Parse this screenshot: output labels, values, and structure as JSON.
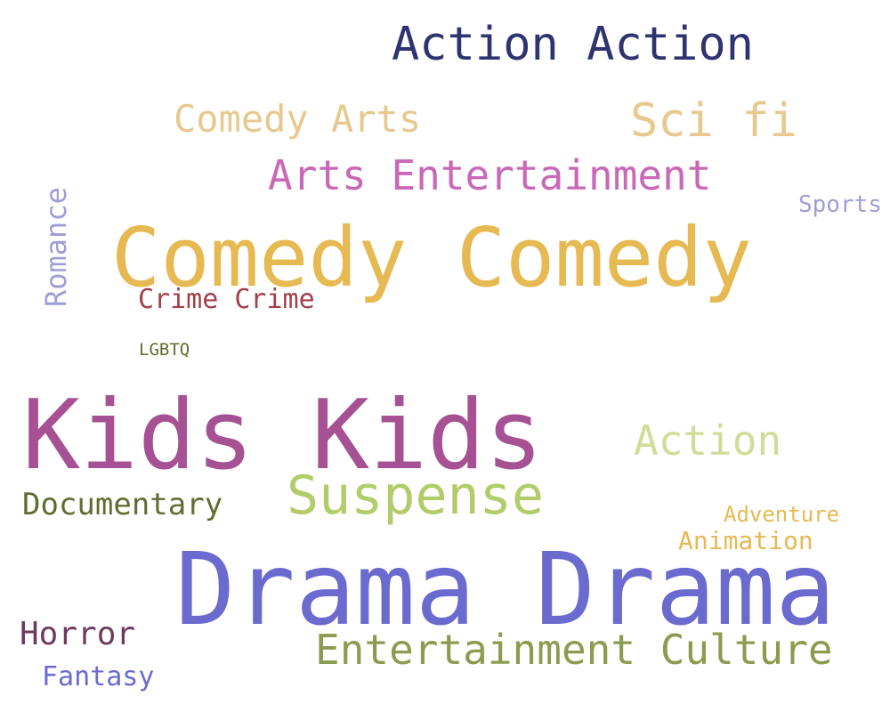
{
  "words": {
    "action_action": {
      "text": "Action Action",
      "color": "#2f3470"
    },
    "comedy_arts": {
      "text": "Comedy Arts",
      "color": "#e7c98f"
    },
    "sci_fi": {
      "text": "Sci fi",
      "color": "#e7c98f"
    },
    "arts_entertainment": {
      "text": "Arts Entertainment",
      "color": "#c968b7"
    },
    "sports": {
      "text": "Sports",
      "color": "#9e9ed8"
    },
    "comedy_comedy": {
      "text": "Comedy Comedy",
      "color": "#e6b953"
    },
    "romance": {
      "text": "Romance",
      "color": "#9e9ed8"
    },
    "crime_crime": {
      "text": "Crime Crime",
      "color": "#a0404a"
    },
    "lgbtq": {
      "text": "LGBTQ",
      "color": "#5f6e2c"
    },
    "kids_kids": {
      "text": "Kids Kids",
      "color": "#a65193"
    },
    "action": {
      "text": "Action",
      "color": "#d2dc98"
    },
    "suspense": {
      "text": "Suspense",
      "color": "#b2cc6a"
    },
    "documentary": {
      "text": "Documentary",
      "color": "#5f6e30"
    },
    "adventure": {
      "text": "Adventure",
      "color": "#e6b953"
    },
    "animation": {
      "text": "Animation",
      "color": "#e6b953"
    },
    "drama_drama": {
      "text": "Drama Drama",
      "color": "#6b6bcf"
    },
    "horror": {
      "text": "Horror",
      "color": "#6e3a5e"
    },
    "entertainment_culture": {
      "text": "Entertainment Culture",
      "color": "#8b9c4f"
    },
    "fantasy": {
      "text": "Fantasy",
      "color": "#6b6bcf"
    }
  }
}
